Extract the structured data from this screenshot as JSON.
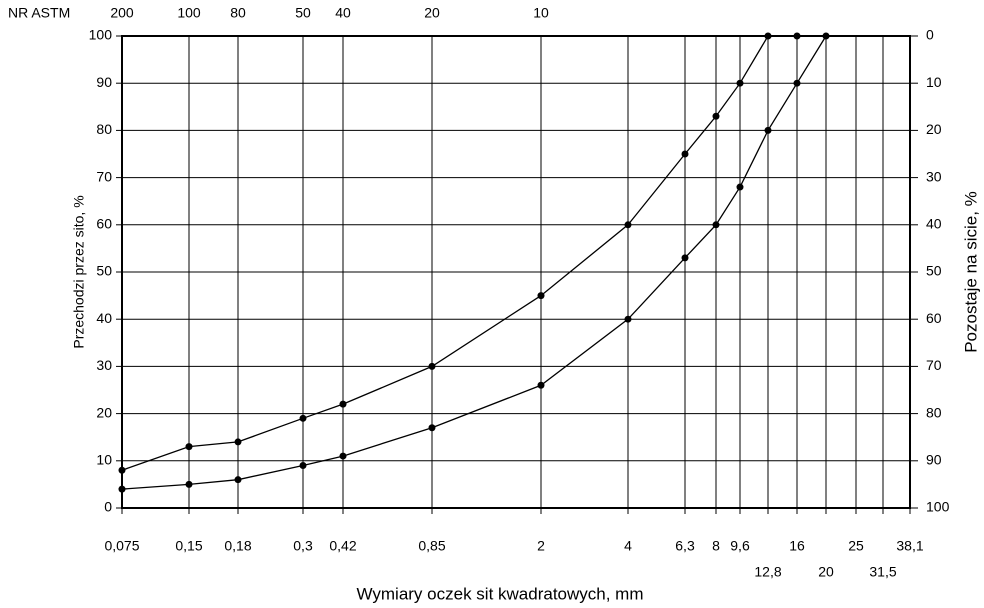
{
  "chart_data": {
    "type": "line",
    "x_label": "Wymiary oczek sit kwadratowych, mm",
    "y_label": "Przechodzi przez sito, %",
    "y2_label": "Pozostaje na sicie, %",
    "top_axis_label": "NR ASTM",
    "top_ticks": [
      {
        "value": 0.075,
        "label": "200"
      },
      {
        "value": 0.15,
        "label": "100"
      },
      {
        "value": 0.18,
        "label": "80"
      },
      {
        "value": 0.3,
        "label": "50"
      },
      {
        "value": 0.42,
        "label": "40"
      },
      {
        "value": 0.85,
        "label": "20"
      },
      {
        "value": 2,
        "label": "10"
      }
    ],
    "xlim": [
      0.075,
      38.1
    ],
    "xticks": [
      {
        "value": 0.075,
        "label": "0,075"
      },
      {
        "value": 0.15,
        "label": "0,15"
      },
      {
        "value": 0.18,
        "label": "0,18"
      },
      {
        "value": 0.3,
        "label": "0,3"
      },
      {
        "value": 0.42,
        "label": "0,42"
      },
      {
        "value": 0.85,
        "label": "0,85"
      },
      2,
      4,
      {
        "value": 6.3,
        "label": "6,3"
      },
      8,
      {
        "value": 9.6,
        "label": "9,6"
      },
      {
        "value": 12.8,
        "label": "12,8"
      },
      16,
      20,
      25,
      {
        "value": 31.5,
        "label": "31,5"
      },
      {
        "value": 38.1,
        "label": "38,1"
      }
    ],
    "ylim": [
      0,
      100
    ],
    "yticks": [
      0,
      10,
      20,
      30,
      40,
      50,
      60,
      70,
      80,
      90,
      100
    ],
    "y2lim": [
      100,
      0
    ],
    "y2ticks": [
      0,
      10,
      20,
      30,
      40,
      50,
      60,
      70,
      80,
      90,
      100
    ],
    "grid": true,
    "series": [
      {
        "color": "#000000",
        "x": [
          0.075,
          0.15,
          0.18,
          0.3,
          0.42,
          0.85,
          2,
          4,
          6.3,
          8,
          9.6,
          12.8,
          16
        ],
        "values": [
          8,
          13,
          14,
          19,
          22,
          30,
          45,
          60,
          75,
          83,
          90,
          100,
          100
        ]
      },
      {
        "color": "#000000",
        "x": [
          0.075,
          0.15,
          0.18,
          0.3,
          0.42,
          0.85,
          2,
          4,
          6.3,
          8,
          9.6,
          12.8,
          16,
          20
        ],
        "values": [
          4,
          5,
          6,
          9,
          11,
          17,
          26,
          40,
          53,
          60,
          68,
          80,
          90,
          100
        ]
      }
    ]
  }
}
